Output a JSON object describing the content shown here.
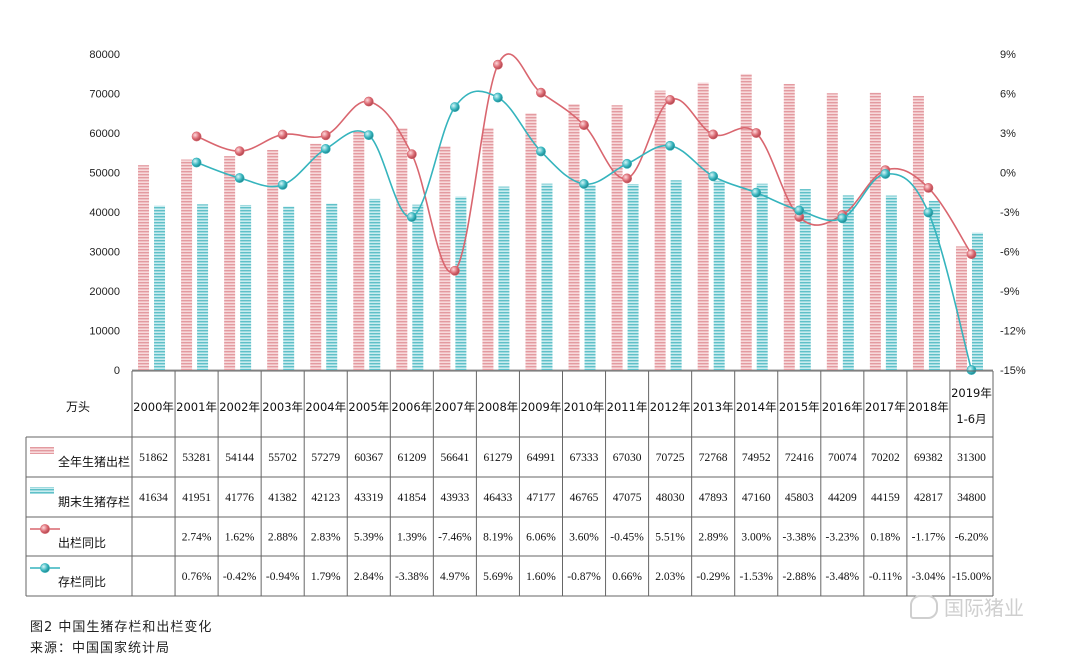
{
  "chart_data": {
    "type": "bar-line-combo",
    "categories": [
      "2000年",
      "2001年",
      "2002年",
      "2003年",
      "2004年",
      "2005年",
      "2006年",
      "2007年",
      "2008年",
      "2009年",
      "2010年",
      "2011年",
      "2012年",
      "2013年",
      "2014年",
      "2015年",
      "2016年",
      "2017年",
      "2018年",
      "2019年\n1-6月"
    ],
    "unit_label": "万头",
    "y_left": {
      "ticks": [
        "0",
        "10000",
        "20000",
        "30000",
        "40000",
        "50000",
        "60000",
        "70000",
        "80000"
      ],
      "lim": [
        0,
        80000
      ]
    },
    "y_right": {
      "ticks": [
        "-15%",
        "-12%",
        "-9%",
        "-6%",
        "-3%",
        "0%",
        "3%",
        "6%",
        "9%"
      ],
      "lim": [
        -15,
        9
      ]
    },
    "series": [
      {
        "name": "全年生猪出栏",
        "kind": "bar",
        "axis": "left",
        "color": "#e8a1a5",
        "values": [
          51862,
          53281,
          54144,
          55702,
          57279,
          60367,
          61209,
          56641,
          61279,
          64991,
          67333,
          67030,
          70725,
          72768,
          74952,
          72416,
          70074,
          70202,
          69382,
          31300
        ],
        "labels": [
          "51862",
          "53281",
          "54144",
          "55702",
          "57279",
          "60367",
          "61209",
          "56641",
          "61279",
          "64991",
          "67333",
          "67030",
          "70725",
          "72768",
          "74952",
          "72416",
          "70074",
          "70202",
          "69382",
          "31300"
        ]
      },
      {
        "name": "期末生猪存栏",
        "kind": "bar",
        "axis": "left",
        "color": "#79c9d0",
        "values": [
          41634,
          41951,
          41776,
          41382,
          42123,
          43319,
          41854,
          43933,
          46433,
          47177,
          46765,
          47075,
          48030,
          47893,
          47160,
          45803,
          44209,
          44159,
          42817,
          34800
        ],
        "labels": [
          "41634",
          "41951",
          "41776",
          "41382",
          "42123",
          "43319",
          "41854",
          "43933",
          "46433",
          "47177",
          "46765",
          "47075",
          "48030",
          "47893",
          "47160",
          "45803",
          "44209",
          "44159",
          "42817",
          "34800"
        ]
      },
      {
        "name": "出栏同比",
        "kind": "line",
        "axis": "right",
        "color": "#d9666f",
        "values": [
          null,
          2.74,
          1.62,
          2.88,
          2.83,
          5.39,
          1.39,
          -7.46,
          8.19,
          6.06,
          3.6,
          -0.45,
          5.51,
          2.89,
          3.0,
          -3.38,
          -3.23,
          0.18,
          -1.17,
          -6.2
        ],
        "labels": [
          "",
          "2.74%",
          "1.62%",
          "2.88%",
          "2.83%",
          "5.39%",
          "1.39%",
          "-7.46%",
          "8.19%",
          "6.06%",
          "3.60%",
          "-0.45%",
          "5.51%",
          "2.89%",
          "3.00%",
          "-3.38%",
          "-3.23%",
          "0.18%",
          "-1.17%",
          "-6.20%"
        ]
      },
      {
        "name": "存栏同比",
        "kind": "line",
        "axis": "right",
        "color": "#35b4bd",
        "values": [
          null,
          0.76,
          -0.42,
          -0.94,
          1.79,
          2.84,
          -3.38,
          4.97,
          5.69,
          1.6,
          -0.87,
          0.66,
          2.03,
          -0.29,
          -1.53,
          -2.88,
          -3.48,
          -0.11,
          -3.04,
          -15.0
        ],
        "labels": [
          "",
          "0.76%",
          "-0.42%",
          "-0.94%",
          "1.79%",
          "2.84%",
          "-3.38%",
          "4.97%",
          "5.69%",
          "1.60%",
          "-0.87%",
          "0.66%",
          "2.03%",
          "-0.29%",
          "-1.53%",
          "-2.88%",
          "-3.48%",
          "-0.11%",
          "-3.04%",
          "-15.00%"
        ]
      }
    ]
  },
  "caption": {
    "figure": "图2  中国生猪存栏和出栏变化",
    "source": "来源：中国国家统计局"
  },
  "watermark": "国际猪业"
}
